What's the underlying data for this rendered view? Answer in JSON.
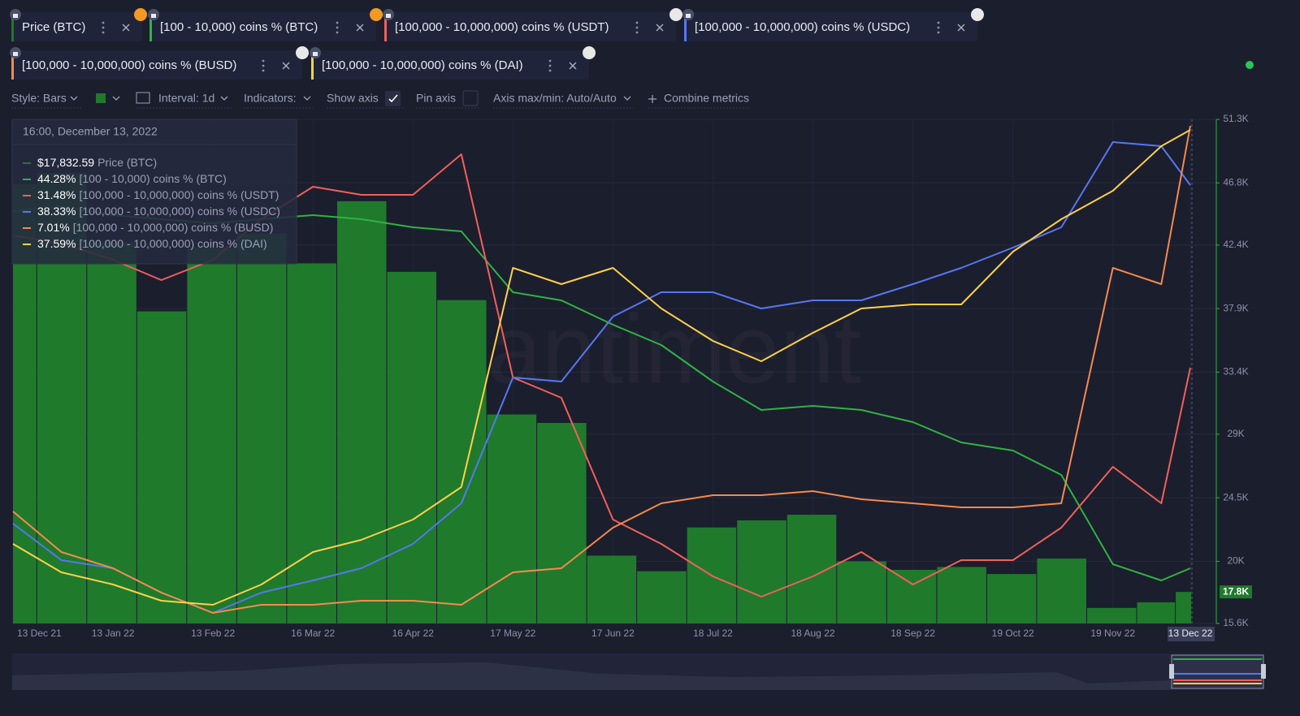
{
  "toolbar": {
    "style": "Style: Bars",
    "interval": "Interval: 1d",
    "indicators": "Indicators:",
    "show_axis": "Show axis",
    "pin_axis": "Pin axis",
    "axis_minmax": "Axis max/min: Auto/Auto",
    "combine": "Combine metrics"
  },
  "tooltip": {
    "date": "16:00, December 13, 2022",
    "labels": [
      "Price (BTC)",
      "[100 - 10,000) coins % (BTC)",
      "[100,000  - 10,000,000) coins % (USDT)",
      "[100,000  - 10,000,000) coins % (USDC)",
      "[100,000  - 10,000,000) coins % (BUSD)",
      "[100,000  - 10,000,000) coins % (DAI)"
    ]
  },
  "chart_data": {
    "type": "combo",
    "watermark": "santiment",
    "current_label": "17.8K",
    "x": [
      "2021-12-13",
      "2021-12-28",
      "2022-01-13",
      "2022-01-28",
      "2022-02-13",
      "2022-02-28",
      "2022-03-16",
      "2022-03-31",
      "2022-04-16",
      "2022-05-01",
      "2022-05-17",
      "2022-06-01",
      "2022-06-17",
      "2022-07-02",
      "2022-07-18",
      "2022-08-02",
      "2022-08-18",
      "2022-09-02",
      "2022-09-18",
      "2022-10-03",
      "2022-10-19",
      "2022-11-03",
      "2022-11-19",
      "2022-12-04",
      "2022-12-13"
    ],
    "xlim": [
      "2021-12-13",
      "2022-12-13"
    ],
    "xticks": [
      {
        "value": "2021-12-13",
        "label": "13 Dec 21"
      },
      {
        "value": "2022-01-13",
        "label": "13 Jan 22"
      },
      {
        "value": "2022-02-13",
        "label": "13 Feb 22"
      },
      {
        "value": "2022-03-16",
        "label": "16 Mar 22"
      },
      {
        "value": "2022-04-16",
        "label": "16 Apr 22"
      },
      {
        "value": "2022-05-17",
        "label": "17 May 22"
      },
      {
        "value": "2022-06-17",
        "label": "17 Jun 22"
      },
      {
        "value": "2022-07-18",
        "label": "18 Jul 22"
      },
      {
        "value": "2022-08-18",
        "label": "18 Aug 22"
      },
      {
        "value": "2022-09-18",
        "label": "18 Sep 22"
      },
      {
        "value": "2022-10-19",
        "label": "19 Oct 22"
      },
      {
        "value": "2022-11-19",
        "label": "19 Nov 22"
      },
      {
        "value": "2022-12-13",
        "label": "13 Dec 22"
      }
    ],
    "ylim": [
      15600,
      51300
    ],
    "yticks": [
      {
        "value": 51300,
        "label": "51.3K"
      },
      {
        "value": 46800,
        "label": "46.8K"
      },
      {
        "value": 42400,
        "label": "42.4K"
      },
      {
        "value": 37900,
        "label": "37.9K"
      },
      {
        "value": 33400,
        "label": "33.4K"
      },
      {
        "value": 29000,
        "label": "29K"
      },
      {
        "value": 24500,
        "label": "24.5K"
      },
      {
        "value": 20000,
        "label": "20K"
      },
      {
        "value": 15600,
        "label": "15.6K"
      }
    ],
    "grid": true,
    "series": [
      {
        "name": "Price (BTC)",
        "type": "bar",
        "color": "#1f7a2c",
        "values": [
          46700,
          47500,
          42600,
          37700,
          42200,
          43200,
          41100,
          45500,
          40500,
          38500,
          30400,
          29800,
          20400,
          19300,
          22400,
          22900,
          23300,
          20000,
          19400,
          19600,
          19100,
          20200,
          16700,
          17100,
          17832.59
        ],
        "value_labels": [
          null,
          null,
          null,
          null,
          null,
          null,
          null,
          null,
          null,
          null,
          null,
          null,
          null,
          null,
          null,
          null,
          null,
          null,
          null,
          null,
          null,
          null,
          null,
          null,
          "$17,832.59"
        ]
      },
      {
        "name": "[100 - 10,000) coins % (BTC)",
        "type": "line",
        "color": "#2fb344",
        "ylim": [
          40.88,
          71.93
        ],
        "values": [
          66.28,
          66.53,
          66.03,
          65.78,
          65.53,
          65.78,
          66.03,
          65.78,
          65.28,
          65.03,
          61.28,
          60.78,
          59.28,
          58.03,
          55.78,
          54.03,
          54.28,
          54.03,
          53.28,
          52.03,
          51.53,
          50.03,
          44.53,
          43.53,
          44.28
        ],
        "value_labels": [
          null,
          null,
          null,
          null,
          null,
          null,
          null,
          null,
          null,
          null,
          null,
          null,
          null,
          null,
          null,
          null,
          null,
          null,
          null,
          null,
          null,
          null,
          null,
          null,
          "44.28%"
        ]
      },
      {
        "name": "[100,000 - 10,000,000) coins % (USDT)",
        "type": "line",
        "color": "#f1605a",
        "ylim": [
          15.73,
          46.78
        ],
        "values": [
          39.63,
          39.13,
          38.13,
          36.88,
          38.13,
          40.63,
          42.63,
          42.13,
          42.13,
          44.63,
          30.88,
          29.63,
          22.13,
          20.63,
          18.63,
          17.38,
          18.63,
          20.13,
          18.13,
          19.63,
          19.63,
          21.63,
          25.38,
          23.13,
          31.48
        ],
        "value_labels": [
          null,
          null,
          null,
          null,
          null,
          null,
          null,
          null,
          null,
          null,
          null,
          null,
          null,
          null,
          null,
          null,
          null,
          null,
          null,
          null,
          null,
          null,
          null,
          null,
          "31.48%"
        ]
      },
      {
        "name": "[100,000 - 10,000,000) coins % (USDC)",
        "type": "line",
        "color": "#5677f2",
        "ylim": [
          11.33,
          42.38
        ],
        "values": [
          17.48,
          15.23,
          14.73,
          13.23,
          11.98,
          13.23,
          13.98,
          14.73,
          16.23,
          18.73,
          26.48,
          26.23,
          30.23,
          31.73,
          31.73,
          30.73,
          31.23,
          31.23,
          32.23,
          33.23,
          34.48,
          35.73,
          40.98,
          40.73,
          38.33
        ],
        "value_labels": [
          null,
          null,
          null,
          null,
          null,
          null,
          null,
          null,
          null,
          null,
          null,
          null,
          null,
          null,
          null,
          null,
          null,
          null,
          null,
          null,
          null,
          null,
          null,
          null,
          "38.33%"
        ]
      },
      {
        "name": "[100,000 - 10,000,000) coins % (BUSD)",
        "type": "line",
        "color": "#f68a4c",
        "ylim": [
          0.88,
          7.09
        ],
        "values": [
          2.26,
          1.76,
          1.56,
          1.26,
          1.01,
          1.11,
          1.11,
          1.16,
          1.16,
          1.11,
          1.51,
          1.56,
          2.06,
          2.36,
          2.46,
          2.46,
          2.51,
          2.41,
          2.36,
          2.31,
          2.31,
          2.36,
          5.26,
          5.06,
          7.01
        ],
        "value_labels": [
          null,
          null,
          null,
          null,
          null,
          null,
          null,
          null,
          null,
          null,
          null,
          null,
          null,
          null,
          null,
          null,
          null,
          null,
          null,
          null,
          null,
          null,
          null,
          null,
          "7.01%"
        ]
      },
      {
        "name": "[100,000 - 10,000,000) coins % (DAI)",
        "type": "line",
        "color": "#ffd048",
        "ylim": [
          7.19,
          38.24
        ],
        "values": [
          12.09,
          10.34,
          9.59,
          8.59,
          8.34,
          9.59,
          11.59,
          12.34,
          13.59,
          15.59,
          29.09,
          28.09,
          29.09,
          26.59,
          24.59,
          23.34,
          25.09,
          26.59,
          26.84,
          26.84,
          30.09,
          32.09,
          33.84,
          36.59,
          37.59
        ],
        "value_labels": [
          null,
          null,
          null,
          null,
          null,
          null,
          null,
          null,
          null,
          null,
          null,
          null,
          null,
          null,
          null,
          null,
          null,
          null,
          null,
          null,
          null,
          null,
          null,
          null,
          "37.59%"
        ]
      }
    ]
  }
}
